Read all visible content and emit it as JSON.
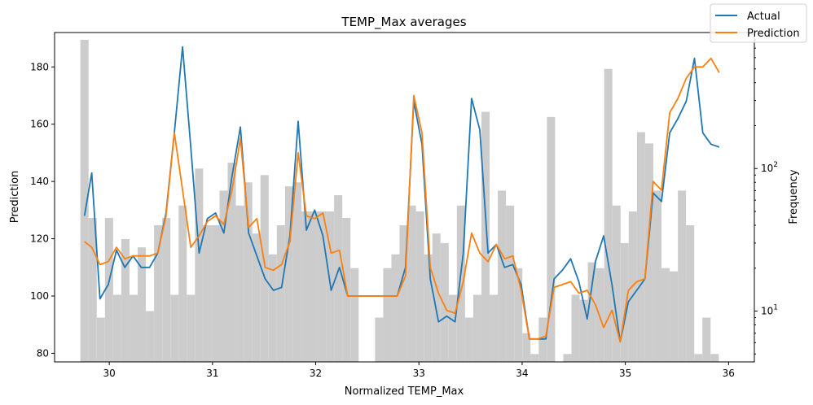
{
  "chart_data": {
    "type": "line",
    "title": "TEMP_Max averages",
    "xlabel": "Normalized TEMP_Max",
    "ylabel": "Prediction",
    "y2label": "Frequency",
    "xlim": [
      29.47,
      36.25
    ],
    "ylim": [
      77.0,
      192.0
    ],
    "y2lim_log": [
      4.4,
      900
    ],
    "x_ticks": [
      30,
      31,
      32,
      33,
      34,
      35,
      36
    ],
    "y_ticks": [
      80,
      100,
      120,
      140,
      160,
      180
    ],
    "y2_ticks": [
      {
        "value": 10,
        "label": "10",
        "exp": "1"
      },
      {
        "value": 100,
        "label": "10",
        "exp": "2"
      }
    ],
    "legend_position": "top-right",
    "grid": false,
    "series": [
      {
        "name": "Actual",
        "color": "#1f77b4",
        "x": [
          29.76,
          29.83,
          29.91,
          29.99,
          30.07,
          30.15,
          30.23,
          30.31,
          30.39,
          30.47,
          30.55,
          30.63,
          30.71,
          30.79,
          30.87,
          30.95,
          31.03,
          31.11,
          31.19,
          31.27,
          31.35,
          31.43,
          31.51,
          31.59,
          31.67,
          31.75,
          31.83,
          31.91,
          31.99,
          32.07,
          32.15,
          32.23,
          32.31,
          32.39,
          32.47,
          32.55,
          32.63,
          32.71,
          32.79,
          32.87,
          32.95,
          33.03,
          33.11,
          33.19,
          33.27,
          33.35,
          33.43,
          33.51,
          33.59,
          33.67,
          33.75,
          33.83,
          33.91,
          33.99,
          34.07,
          34.15,
          34.23,
          34.31,
          34.39,
          34.47,
          34.55,
          34.63,
          34.71,
          34.79,
          34.87,
          34.95,
          35.03,
          35.11,
          35.19,
          35.27,
          35.35,
          35.43,
          35.51,
          35.59,
          35.67,
          35.75,
          35.83,
          35.91
        ],
        "values": [
          128,
          143,
          99,
          104,
          116,
          110,
          114,
          110,
          110,
          115,
          129,
          157,
          187,
          152,
          115,
          127,
          129,
          122,
          142,
          159,
          122,
          114,
          106,
          102,
          103,
          121,
          161,
          123,
          130,
          121,
          102,
          110,
          100,
          100,
          100,
          100,
          100,
          100,
          100,
          110,
          168,
          153,
          106,
          91,
          93,
          91,
          115,
          169,
          158,
          115,
          118,
          110,
          111,
          104,
          85,
          85,
          85,
          106,
          109,
          113,
          105,
          92,
          112,
          121,
          104,
          84,
          98,
          102,
          106,
          136,
          133,
          157,
          162,
          168,
          183,
          157,
          153,
          152
        ]
      },
      {
        "name": "Prediction",
        "color": "#ff7f0e",
        "x": [
          29.76,
          29.83,
          29.91,
          29.99,
          30.07,
          30.15,
          30.23,
          30.31,
          30.39,
          30.47,
          30.55,
          30.63,
          30.71,
          30.79,
          30.87,
          30.95,
          31.03,
          31.11,
          31.19,
          31.27,
          31.35,
          31.43,
          31.51,
          31.59,
          31.67,
          31.75,
          31.83,
          31.91,
          31.99,
          32.07,
          32.15,
          32.23,
          32.31,
          32.39,
          32.47,
          32.55,
          32.63,
          32.71,
          32.79,
          32.87,
          32.95,
          33.03,
          33.11,
          33.19,
          33.27,
          33.35,
          33.43,
          33.51,
          33.59,
          33.67,
          33.75,
          33.83,
          33.91,
          33.99,
          34.07,
          34.15,
          34.23,
          34.31,
          34.39,
          34.47,
          34.55,
          34.63,
          34.71,
          34.79,
          34.87,
          34.95,
          35.03,
          35.11,
          35.19,
          35.27,
          35.35,
          35.43,
          35.51,
          35.59,
          35.67,
          35.75,
          35.83,
          35.91
        ],
        "values": [
          119,
          117,
          111,
          112,
          117,
          113,
          114,
          114,
          114,
          115,
          128,
          157,
          137,
          117,
          121,
          126,
          128,
          125,
          137,
          155,
          124,
          127,
          110,
          109,
          111,
          119,
          150,
          128,
          127,
          129,
          115,
          116,
          100,
          100,
          100,
          100,
          100,
          100,
          100,
          107,
          170,
          157,
          110,
          101,
          95,
          94,
          105,
          122,
          115,
          112,
          118,
          113,
          114,
          102,
          85,
          85,
          86,
          103,
          104,
          105,
          101,
          102,
          97,
          89,
          95,
          84,
          102,
          105,
          106,
          140,
          137,
          164,
          169,
          176,
          180,
          180,
          183,
          178
        ]
      }
    ],
    "histogram": {
      "name": "Frequency",
      "color": "#cccccc",
      "bin_start": 29.72,
      "bin_width": 0.0793,
      "counts": [
        800,
        45,
        9,
        45,
        13,
        32,
        13,
        28,
        10,
        40,
        45,
        13,
        55,
        13,
        100,
        40,
        40,
        70,
        110,
        55,
        80,
        35,
        90,
        25,
        40,
        75,
        80,
        50,
        50,
        50,
        50,
        65,
        45,
        20,
        0,
        0,
        9,
        20,
        25,
        40,
        55,
        50,
        25,
        35,
        30,
        13,
        55,
        9,
        13,
        250,
        13,
        70,
        55,
        20,
        7,
        5,
        9,
        230,
        0,
        5,
        13,
        12,
        22,
        20,
        500,
        55,
        30,
        50,
        180,
        150,
        70,
        20,
        19,
        70,
        40,
        5,
        9,
        5
      ]
    }
  }
}
